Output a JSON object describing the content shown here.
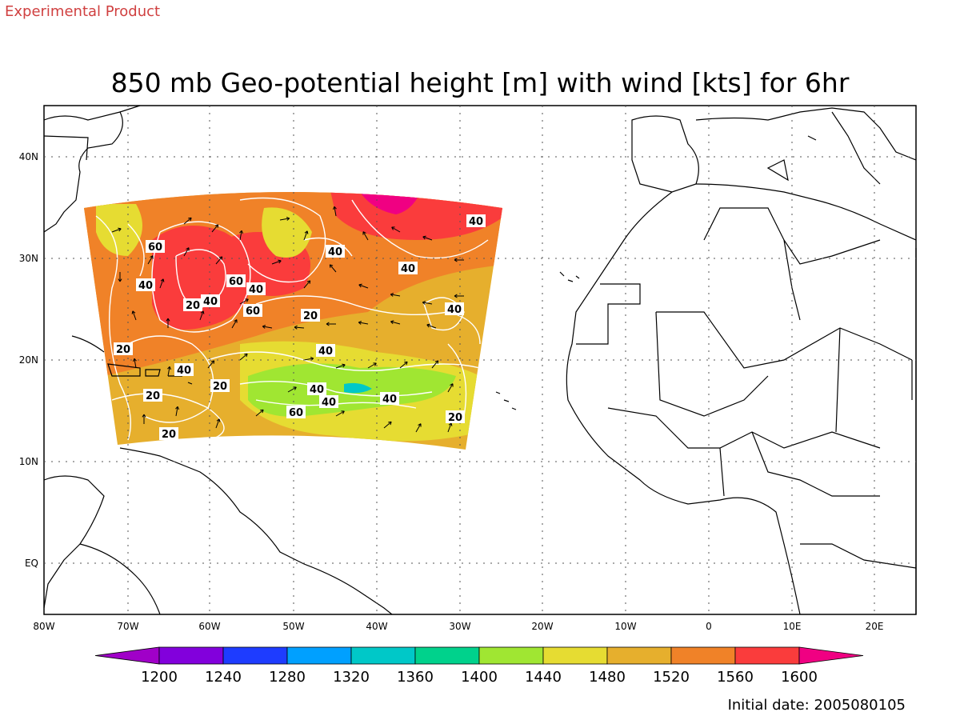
{
  "header": {
    "product_note": "Experimental Product",
    "title": "850 mb Geo-potential height [m] with wind [kts] for 6hr"
  },
  "footer": {
    "initial_date": "Initial date: 2005080105"
  },
  "map": {
    "lon_ticks": [
      "80W",
      "70W",
      "60W",
      "50W",
      "40W",
      "30W",
      "20W",
      "10W",
      "0",
      "10E",
      "20E"
    ],
    "lat_ticks": [
      "40N",
      "30N",
      "20N",
      "10N",
      "EQ"
    ],
    "wind_contour_labels": [
      "60",
      "40",
      "20",
      "40",
      "60",
      "40",
      "60",
      "40",
      "20",
      "40",
      "40",
      "40",
      "40",
      "20",
      "40",
      "20",
      "20",
      "40",
      "20",
      "40",
      "40",
      "60",
      "20",
      "20",
      "40"
    ]
  },
  "colorbar": {
    "levels": [
      "1200",
      "1240",
      "1280",
      "1320",
      "1360",
      "1400",
      "1440",
      "1480",
      "1520",
      "1560",
      "1600"
    ],
    "colors": [
      "#a000c8",
      "#8200dc",
      "#1e3cff",
      "#00a0ff",
      "#00c8c8",
      "#00d28c",
      "#a0e632",
      "#e6dc32",
      "#e6af2d",
      "#f08228",
      "#fa3c3c",
      "#f00082"
    ]
  }
}
